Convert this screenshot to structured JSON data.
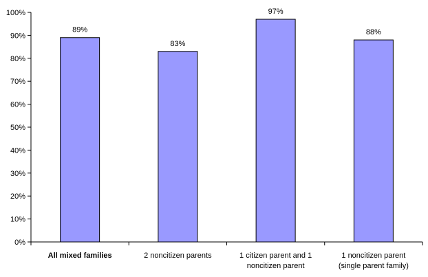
{
  "chart_data": {
    "type": "bar",
    "title": "",
    "xlabel": "",
    "ylabel": "",
    "ylim": [
      0,
      100
    ],
    "yticks": [
      0,
      10,
      20,
      30,
      40,
      50,
      60,
      70,
      80,
      90,
      100
    ],
    "ytick_labels": [
      "0%",
      "10%",
      "20%",
      "30%",
      "40%",
      "50%",
      "60%",
      "70%",
      "80%",
      "90%",
      "100%"
    ],
    "categories": [
      [
        "All mixed families"
      ],
      [
        "2 noncitizen parents"
      ],
      [
        "1 citizen parent and 1",
        "noncitizen parent"
      ],
      [
        "1 noncitizen parent",
        "(single parent family)"
      ]
    ],
    "category_bold": [
      true,
      false,
      false,
      false
    ],
    "values": [
      89,
      83,
      97,
      88
    ],
    "data_labels": [
      "89%",
      "83%",
      "97%",
      "88%"
    ],
    "bar_color": "#9999ff",
    "bar_edge_color": "#000000",
    "grid": false,
    "legend": "none"
  }
}
